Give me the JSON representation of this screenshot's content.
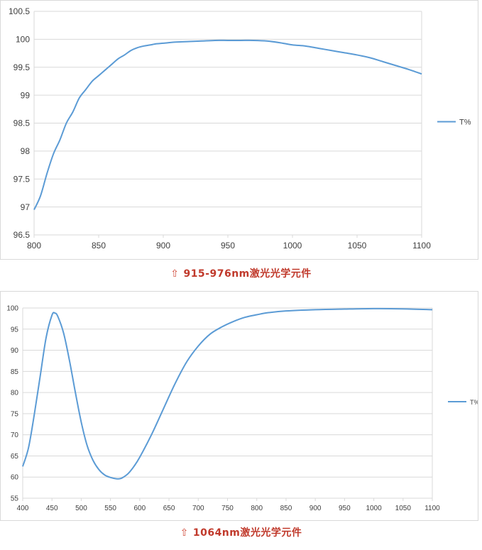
{
  "captions": [
    {
      "arrow": "⇧",
      "text": "915-976nm激光光学元件"
    },
    {
      "arrow": "⇧",
      "text": "1064nm激光光学元件"
    }
  ],
  "colors": {
    "series": "#5b9bd5",
    "grid": "#d9d9d9",
    "caption": "#c0392b"
  },
  "chart_data": [
    {
      "type": "line",
      "xlim": [
        800,
        1100
      ],
      "ylim": [
        96.5,
        100.5
      ],
      "xticks": [
        800,
        850,
        900,
        950,
        1000,
        1050,
        1100
      ],
      "yticks": [
        96.5,
        97,
        97.5,
        98,
        98.5,
        99,
        99.5,
        100,
        100.5
      ],
      "grid": true,
      "legend": "right",
      "series": [
        {
          "name": "T%",
          "x": [
            800,
            805,
            810,
            815,
            820,
            825,
            830,
            835,
            840,
            845,
            850,
            855,
            860,
            865,
            870,
            875,
            880,
            885,
            890,
            895,
            900,
            910,
            920,
            930,
            940,
            950,
            960,
            970,
            980,
            990,
            1000,
            1010,
            1020,
            1030,
            1040,
            1050,
            1060,
            1070,
            1080,
            1090,
            1095,
            1100
          ],
          "y": [
            96.95,
            97.2,
            97.6,
            97.95,
            98.2,
            98.5,
            98.7,
            98.95,
            99.1,
            99.25,
            99.35,
            99.45,
            99.55,
            99.65,
            99.72,
            99.8,
            99.85,
            99.88,
            99.9,
            99.92,
            99.93,
            99.95,
            99.96,
            99.97,
            99.98,
            99.98,
            99.98,
            99.98,
            99.97,
            99.94,
            99.9,
            99.88,
            99.84,
            99.8,
            99.76,
            99.72,
            99.67,
            99.6,
            99.53,
            99.46,
            99.42,
            99.38
          ]
        }
      ]
    },
    {
      "type": "line",
      "xlim": [
        400,
        1100
      ],
      "ylim": [
        55,
        100
      ],
      "xticks": [
        400,
        450,
        500,
        550,
        600,
        650,
        700,
        750,
        800,
        850,
        900,
        950,
        1000,
        1050,
        1100
      ],
      "yticks": [
        55,
        60,
        65,
        70,
        75,
        80,
        85,
        90,
        95,
        100
      ],
      "grid": true,
      "legend": "right",
      "series": [
        {
          "name": "T%",
          "x": [
            400,
            410,
            420,
            430,
            440,
            450,
            455,
            460,
            470,
            480,
            490,
            500,
            510,
            520,
            530,
            540,
            550,
            560,
            565,
            570,
            580,
            590,
            600,
            620,
            640,
            660,
            680,
            700,
            720,
            740,
            760,
            780,
            800,
            820,
            850,
            900,
            950,
            1000,
            1050,
            1100
          ],
          "y": [
            62.5,
            67,
            75,
            84,
            93,
            98.3,
            98.8,
            98,
            94,
            87.5,
            80,
            73,
            67.5,
            64,
            61.8,
            60.5,
            59.9,
            59.6,
            59.6,
            59.8,
            60.8,
            62.5,
            64.7,
            70,
            76,
            82,
            87.2,
            91,
            93.8,
            95.5,
            96.8,
            97.8,
            98.4,
            98.9,
            99.3,
            99.6,
            99.75,
            99.85,
            99.8,
            99.6
          ]
        }
      ]
    }
  ]
}
